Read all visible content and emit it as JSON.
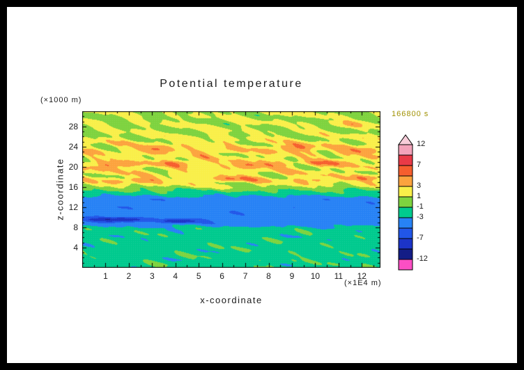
{
  "page": {
    "frame_color": "#000000",
    "paper_color": "#ffffff"
  },
  "chart_data": {
    "type": "heatmap",
    "title": "Potential temperature",
    "time_label": "166800 s",
    "xlabel": "x-coordinate",
    "ylabel": "z-coordinate",
    "x_unit": "(×1E4 m)",
    "y_unit": "(×1000 m)",
    "x_range": [
      0,
      12.8
    ],
    "z_range": [
      0,
      31
    ],
    "x_ticks": [
      1,
      2,
      3,
      4,
      5,
      6,
      7,
      8,
      9,
      10,
      11,
      12
    ],
    "z_ticks": [
      4,
      8,
      12,
      16,
      20,
      24,
      28
    ],
    "grid": false,
    "legend_position": "right-colorbar",
    "color_scale": {
      "levels": [
        -12,
        -10,
        -7,
        -5,
        -3,
        -1,
        1,
        3,
        5,
        7,
        10,
        12
      ],
      "colors": [
        "#fb4fc4",
        "#141d86",
        "#1c34c8",
        "#2156e8",
        "#2782f5",
        "#00ca8e",
        "#7ed33f",
        "#f9ef49",
        "#fca33e",
        "#f65e2e",
        "#e93a47",
        "#f3a3ba",
        "#f7cdd9"
      ],
      "colorbar_labels": [
        {
          "text": "12",
          "boundary": 0
        },
        {
          "text": "7",
          "boundary": 2
        },
        {
          "text": "3",
          "boundary": 4
        },
        {
          "text": "1",
          "boundary": 5
        },
        {
          "text": "-1",
          "boundary": 6
        },
        {
          "text": "-3",
          "boundary": 7
        },
        {
          "text": "-7",
          "boundary": 9
        },
        {
          "text": "-12",
          "boundary": 11
        }
      ]
    },
    "field_model": {
      "description": "Horizontally banded potential-temperature perturbation field: teal/green mixed layer below 8 km, uniform blue stable band 9-14 km with two dark navy streaks near 9.5 km, transition stripe near 15 km, wavy yellow-green layer 16-30 km with orange/red streak cores near z=17.5, 20.5, 23.5 km.",
      "base_profile": [
        {
          "z": 0,
          "v": -1.7
        },
        {
          "z": 7.8,
          "v": -2.0
        },
        {
          "z": 8.8,
          "v": -4.3
        },
        {
          "z": 13.6,
          "v": -4.3
        },
        {
          "z": 15.2,
          "v": -1.2
        },
        {
          "z": 16.4,
          "v": 1.3
        },
        {
          "z": 17.5,
          "v": 2.0
        },
        {
          "z": 24.5,
          "v": 1.9
        },
        {
          "z": 26.5,
          "v": 1.1
        },
        {
          "z": 31,
          "v": 0.9
        }
      ],
      "amp_profile": [
        {
          "z": 0,
          "v": 1.05
        },
        {
          "z": 8,
          "v": 0.95
        },
        {
          "z": 9,
          "v": 0.55
        },
        {
          "z": 13.4,
          "v": 0.55
        },
        {
          "z": 15.3,
          "v": 0.95
        },
        {
          "z": 16.8,
          "v": 1.7
        },
        {
          "z": 24.5,
          "v": 1.7
        },
        {
          "z": 26.5,
          "v": 1.25
        },
        {
          "z": 31,
          "v": 1.15
        }
      ],
      "waves": [
        {
          "a": 0.55,
          "kx": 1.6,
          "kz": 2.2,
          "p": 1.3
        },
        {
          "a": 0.45,
          "kx": 2.8,
          "kz": 1.2,
          "p": 4.2
        },
        {
          "a": 0.35,
          "kx": 0.9,
          "kz": 3.2,
          "p": 2.0
        },
        {
          "a": 0.3,
          "kx": 4.1,
          "kz": 0.8,
          "p": 0.6
        },
        {
          "a": 0.22,
          "kx": 6.3,
          "kz": 2.6,
          "p": 5.0
        },
        {
          "a": 0.18,
          "kx": 9.0,
          "kz": 3.8,
          "p": 2.7
        }
      ],
      "blobs": [
        {
          "x": 1.3,
          "z": 20.4,
          "rx": 1.2,
          "rz": 0.7,
          "v": 3.2
        },
        {
          "x": 3.2,
          "z": 23.6,
          "rx": 1.0,
          "rz": 0.7,
          "v": 3.0
        },
        {
          "x": 4.3,
          "z": 20.9,
          "rx": 0.9,
          "rz": 0.6,
          "v": 2.8
        },
        {
          "x": 2.3,
          "z": 17.3,
          "rx": 1.1,
          "rz": 0.6,
          "v": 2.6
        },
        {
          "x": 6.4,
          "z": 17.6,
          "rx": 1.0,
          "rz": 0.6,
          "v": 3.0
        },
        {
          "x": 7.3,
          "z": 20.4,
          "rx": 1.2,
          "rz": 0.7,
          "v": 3.2
        },
        {
          "x": 9.1,
          "z": 23.8,
          "rx": 1.1,
          "rz": 0.7,
          "v": 3.4
        },
        {
          "x": 10.7,
          "z": 20.9,
          "rx": 1.0,
          "rz": 0.6,
          "v": 3.0
        },
        {
          "x": 12.0,
          "z": 23.3,
          "rx": 0.9,
          "rz": 0.7,
          "v": 2.8
        },
        {
          "x": 9.9,
          "z": 17.4,
          "rx": 0.9,
          "rz": 0.5,
          "v": 2.4
        },
        {
          "x": 5.6,
          "z": 23.1,
          "rx": 0.8,
          "rz": 0.6,
          "v": 2.2
        },
        {
          "x": 12.4,
          "z": 17.9,
          "rx": 0.8,
          "rz": 0.6,
          "v": 2.6
        },
        {
          "x": 11.6,
          "z": 28.6,
          "rx": 0.9,
          "rz": 0.6,
          "v": 2.2
        },
        {
          "x": 1.4,
          "z": 9.6,
          "rx": 1.2,
          "rz": 0.4,
          "v": -6.0
        },
        {
          "x": 4.1,
          "z": 9.3,
          "rx": 0.8,
          "rz": 0.35,
          "v": -5.0
        }
      ]
    }
  }
}
